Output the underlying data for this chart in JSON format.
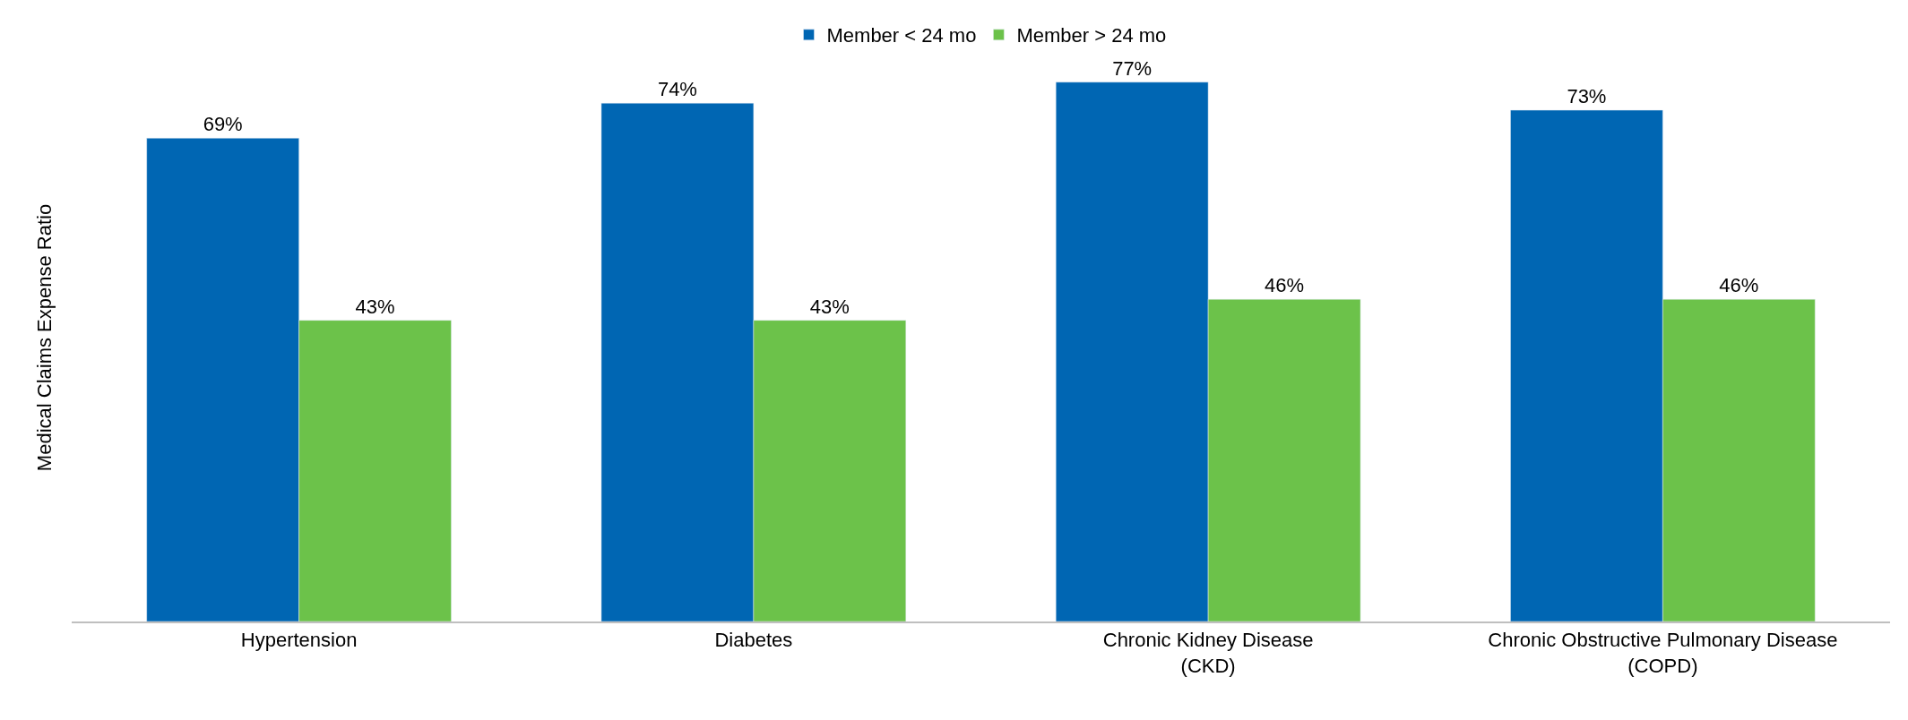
{
  "chart_data": {
    "type": "bar",
    "ylabel": "Medical Claims Expense Ratio",
    "categories": [
      "Hypertension",
      "Diabetes",
      "Chronic Kidney Disease\n(CKD)",
      "Chronic Obstructive Pulmonary Disease\n(COPD)"
    ],
    "series": [
      {
        "name": "Member < 24 mo",
        "color": "#0066b3",
        "values": [
          69,
          74,
          77,
          73
        ],
        "value_labels": [
          "69%",
          "74%",
          "77%",
          "73%"
        ]
      },
      {
        "name": "Member > 24 mo",
        "color": "#6cc24a",
        "values": [
          43,
          43,
          46,
          46
        ],
        "value_labels": [
          "43%",
          "43%",
          "46%",
          "46%"
        ]
      }
    ],
    "legend": "top"
  }
}
